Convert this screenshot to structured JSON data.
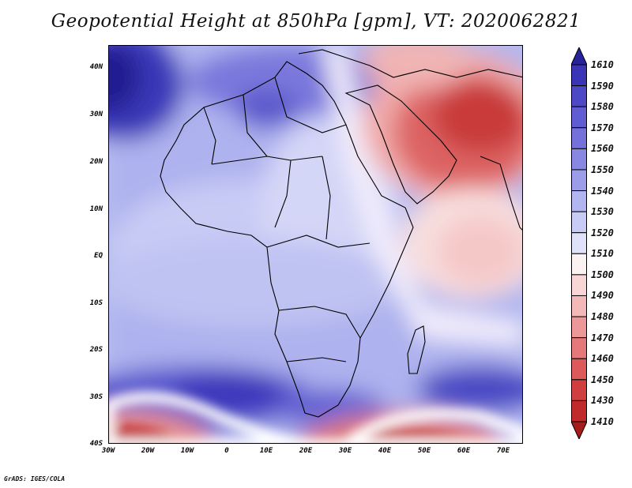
{
  "title": "Geopotential Height at 850hPa [gpm], VT: 2020062821",
  "credit": "GrADS: IGES/COLA",
  "map": {
    "lat_labels": [
      "40N",
      "30N",
      "20N",
      "10N",
      "EQ",
      "10S",
      "20S",
      "30S",
      "40S"
    ],
    "lon_labels": [
      "30W",
      "20W",
      "10W",
      "0",
      "10E",
      "20E",
      "30E",
      "40E",
      "50E",
      "60E",
      "70E"
    ]
  },
  "colorbar": {
    "labels": [
      "1610",
      "1590",
      "1580",
      "1570",
      "1560",
      "1550",
      "1540",
      "1530",
      "1520",
      "1510",
      "1500",
      "1490",
      "1480",
      "1470",
      "1460",
      "1450",
      "1430",
      "1410"
    ],
    "colors": [
      "#27229a",
      "#3a35b6",
      "#4d49c6",
      "#605dd2",
      "#7472da",
      "#8887e1",
      "#9c9de8",
      "#b2b5ef",
      "#c8cbf5",
      "#e0e2fa",
      "#fbf2f2",
      "#f8d6d6",
      "#f3b8b8",
      "#ed9898",
      "#e57878",
      "#dc5a5a",
      "#cf3f3f",
      "#c02a2a",
      "#a81b1b"
    ]
  }
}
